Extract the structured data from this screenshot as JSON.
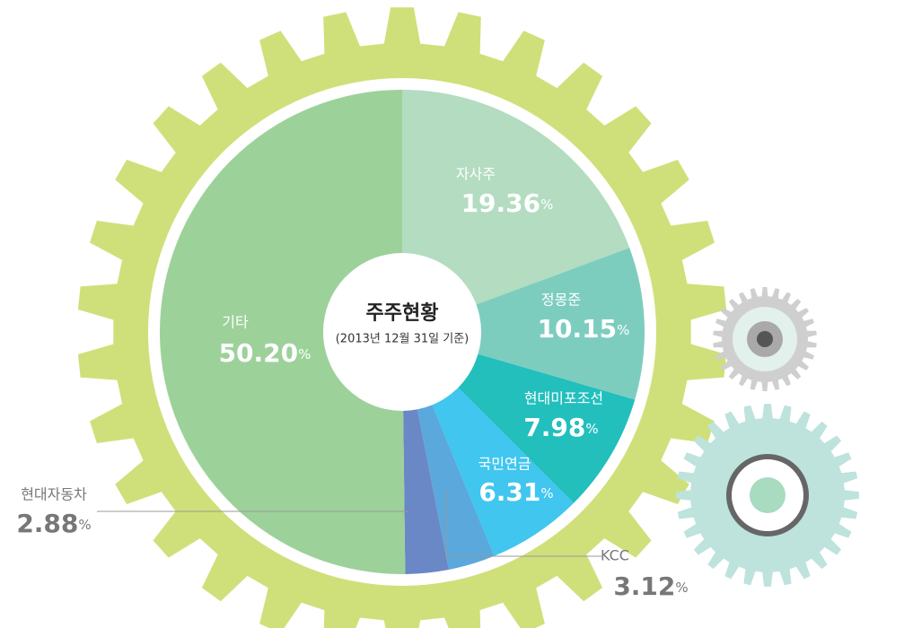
{
  "chart_data": {
    "type": "pie",
    "title": "주주현황",
    "subtitle": "(2013년 12월 31일 기준)",
    "categories": [
      "자사주",
      "정몽준",
      "현대미포조선",
      "국민연금",
      "KCC",
      "현대자동차",
      "기타"
    ],
    "values": [
      19.36,
      10.15,
      7.98,
      6.31,
      3.12,
      2.88,
      50.2
    ],
    "value_labels": [
      "19.36%",
      "10.15%",
      "7.98%",
      "6.31%",
      "3.12%",
      "2.88%",
      "50.20%"
    ],
    "colors": [
      "#b3dcc0",
      "#7dcdbf",
      "#22bfbd",
      "#40c6ef",
      "#5aa8dc",
      "#6a87c6",
      "#9dd19a"
    ]
  }
}
